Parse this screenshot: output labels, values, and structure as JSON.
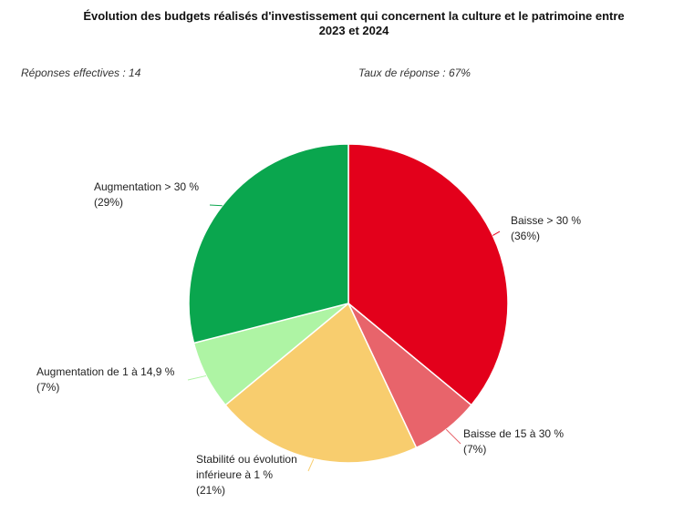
{
  "chart_data": {
    "type": "pie",
    "title_lines": [
      "Évolution des budgets réalisés d'investissement qui concernent la culture et le patrimoine entre",
      "2023 et 2024"
    ],
    "meta": {
      "responses": "Réponses effectives : 14",
      "response_rate": "Taux de réponse : 67%"
    },
    "slices": [
      {
        "label": "Baisse > 30 %",
        "percent_label": "(36%)",
        "value": 36,
        "color": "#e3001b"
      },
      {
        "label": "Baisse de 15 à 30 %",
        "percent_label": "(7%)",
        "value": 7,
        "color": "#e8646b"
      },
      {
        "label": "Stabilité ou évolution inférieure à 1 %",
        "label_lines": [
          "Stabilité ou évolution",
          "inférieure à 1 %"
        ],
        "percent_label": "(21%)",
        "value": 21,
        "color": "#f8cd6e"
      },
      {
        "label": "Augmentation de 1 à 14,9 %",
        "percent_label": "(7%)",
        "value": 7,
        "color": "#aef4a4"
      },
      {
        "label": "Augmentation > 30 %",
        "percent_label": "(29%)",
        "value": 29,
        "color": "#0aa64e"
      }
    ]
  }
}
